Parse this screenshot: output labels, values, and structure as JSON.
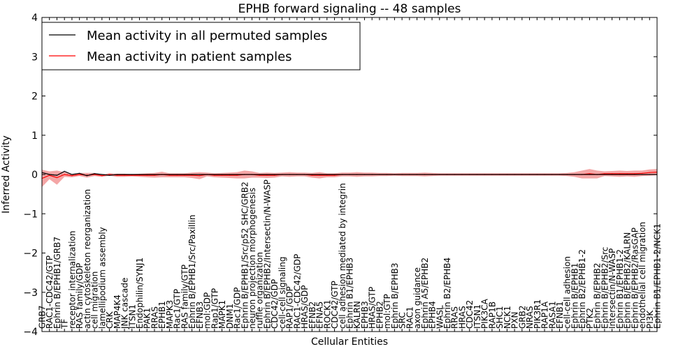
{
  "chart_data": {
    "type": "line",
    "title": "EPHB forward signaling -- 48 samples",
    "xlabel": "Cellular Entities",
    "ylabel": "Inferred Activity",
    "ylim": [
      -4,
      4
    ],
    "yticks": [
      "4",
      "3",
      "2",
      "1",
      "0",
      "−1",
      "−2",
      "−3",
      "−4"
    ],
    "ytick_values": [
      4,
      3,
      2,
      1,
      0,
      -1,
      -2,
      -3,
      -4
    ],
    "legend_position": "top-left",
    "categories": [
      "GRB7",
      "RAC1-CDC42/GTP",
      "Ephrin B/EPHB1/GRB7",
      "TF",
      "receptor internalization",
      "RAS family/GDP",
      "actin cytoskeleton reorganization",
      "cell migration",
      "lamellipodium assembly",
      "CRK",
      "MAP4K4",
      "JNK cascade",
      "ITSN1",
      "Endophilin/SYNJ1",
      "PAK1",
      "RRAS",
      "EPHB1",
      "MAPK3",
      "Rac1/GTP",
      "RAS family/GTP",
      "Ephrin B/EPHB1/Src/Paxillin",
      "EFNB3",
      "mol:GDP",
      "Rap1/GTP",
      "MAPK1",
      "DNM1",
      "Rac1/GDP",
      "Ephrin B/EPHB1/Src/p52 SHC/GRB2",
      "neuron projection morphogenesis",
      "ruffle organization",
      "Ephrin B/EPHB2/Intersectin/N-WASP",
      "CDC42/GDP",
      "cell-cell signaling",
      "RAP1/GDP",
      "RAC1-CDC42/GDP",
      "HRAS/GDP",
      "EFNB2",
      "EFNA5",
      "ROCK1",
      "CDC42/GTP",
      "cell adhesion mediated by integrin",
      "Ephrin B1/EPHB3",
      "KALRN",
      "EPHB3",
      "HRAS/GTP",
      "EPHB2",
      "mol:GTP",
      "Ephrin B/EPHB3",
      "SRC",
      "RAC1",
      "axon guidance",
      "Ephrin A5/EPHB2",
      "EPHB4",
      "WASL",
      "Ephrin B2/EPHB4",
      "RRAS",
      "HRAS",
      "CDC42",
      "ITSN1",
      "PIK3CA",
      "RAP1B",
      "SHC1",
      "NCK1",
      "PXN",
      "GRB2",
      "NRAS",
      "PIK3R1",
      "RAP1A",
      "RASA1",
      "EFNB1",
      "cell-cell adhesion",
      "Ephrin B/EPHB1",
      "Ephrin B2/EPHB1-2",
      "PTK2",
      "Ephrin B/EPHB2",
      "Ephrin B/EPHB2/Src",
      "Intersectin/N-WASP",
      "Ephrin B1/EPHB1-2",
      "Ephrin B/EPHB2/KALRN",
      "Ephrin B/EPHB2/RasGAP",
      "endothelial cell migration",
      "PI3K",
      "Ephrin B1/EPHB1-2/NCK1"
    ],
    "series": [
      {
        "name": "Mean activity in all permuted samples",
        "color": "#000000",
        "values": [
          0.05,
          0.0,
          -0.02,
          0.08,
          0.0,
          0.03,
          -0.03,
          0.02,
          0.0,
          -0.02,
          0.0,
          0.0,
          0.0,
          0.0,
          0.0,
          0.0,
          0.0,
          0.0,
          0.0,
          0.0,
          0.0,
          0.0,
          0.0,
          0.0,
          0.0,
          0.0,
          0.0,
          0.0,
          0.0,
          0.0,
          0.0,
          0.0,
          0.0,
          0.0,
          0.0,
          0.0,
          0.0,
          0.0,
          0.0,
          0.0,
          0.0,
          0.0,
          0.0,
          0.0,
          0.0,
          0.0,
          0.0,
          0.0,
          0.0,
          0.0,
          0.0,
          0.0,
          0.0,
          0.0,
          0.0,
          0.0,
          0.0,
          0.0,
          0.0,
          0.0,
          0.0,
          0.0,
          0.0,
          0.0,
          0.0,
          0.0,
          0.0,
          0.0,
          0.0,
          0.0,
          0.0,
          0.0,
          0.0,
          0.0,
          0.0,
          0.0,
          0.0,
          0.0,
          0.0,
          0.0,
          0.0,
          0.0,
          0.0
        ],
        "band": [
          0.03,
          0.03,
          0.03,
          0.03,
          0.02,
          0.02,
          0.02,
          0.02,
          0.02,
          0.02,
          0.02,
          0.02,
          0.02,
          0.02,
          0.02,
          0.02,
          0.02,
          0.02,
          0.02,
          0.02,
          0.02,
          0.02,
          0.02,
          0.02,
          0.02,
          0.02,
          0.02,
          0.02,
          0.02,
          0.02,
          0.02,
          0.02,
          0.02,
          0.02,
          0.02,
          0.02,
          0.02,
          0.02,
          0.02,
          0.02,
          0.02,
          0.02,
          0.02,
          0.02,
          0.02,
          0.02,
          0.02,
          0.02,
          0.02,
          0.02,
          0.02,
          0.02,
          0.02,
          0.02,
          0.02,
          0.02,
          0.02,
          0.02,
          0.02,
          0.02,
          0.02,
          0.02,
          0.02,
          0.02,
          0.02,
          0.02,
          0.02,
          0.02,
          0.02,
          0.02,
          0.02,
          0.02,
          0.02,
          0.02,
          0.02,
          0.02,
          0.02,
          0.02,
          0.02,
          0.02,
          0.02,
          0.02,
          0.02
        ]
      },
      {
        "name": "Mean activity in patient samples",
        "color": "#ff0000",
        "fill": "#f08080",
        "values": [
          -0.1,
          -0.02,
          -0.08,
          0.0,
          -0.03,
          0.0,
          -0.02,
          0.0,
          -0.03,
          0.0,
          -0.02,
          -0.02,
          -0.02,
          -0.02,
          -0.02,
          -0.02,
          0.0,
          -0.02,
          -0.02,
          -0.02,
          -0.02,
          -0.03,
          0.0,
          -0.02,
          -0.02,
          -0.02,
          -0.02,
          0.0,
          0.0,
          -0.02,
          -0.02,
          -0.02,
          0.0,
          0.0,
          0.0,
          0.0,
          -0.02,
          -0.02,
          -0.02,
          -0.02,
          0.0,
          0.0,
          0.0,
          0.0,
          0.0,
          0.0,
          0.0,
          0.0,
          0.0,
          0.0,
          0.0,
          0.0,
          0.0,
          0.0,
          0.0,
          0.0,
          0.0,
          0.0,
          0.0,
          0.0,
          0.0,
          0.0,
          0.0,
          0.0,
          0.0,
          0.0,
          0.0,
          0.0,
          0.0,
          0.0,
          0.0,
          0.0,
          0.0,
          0.02,
          0.0,
          0.02,
          0.02,
          0.02,
          0.02,
          0.02,
          0.03,
          0.05,
          0.06
        ],
        "band": [
          0.22,
          0.1,
          0.18,
          0.06,
          0.04,
          0.04,
          0.06,
          0.04,
          0.03,
          0.03,
          0.04,
          0.04,
          0.03,
          0.04,
          0.05,
          0.06,
          0.07,
          0.05,
          0.05,
          0.05,
          0.07,
          0.09,
          0.05,
          0.05,
          0.06,
          0.07,
          0.08,
          0.1,
          0.08,
          0.06,
          0.07,
          0.06,
          0.05,
          0.06,
          0.05,
          0.05,
          0.06,
          0.08,
          0.05,
          0.05,
          0.05,
          0.05,
          0.06,
          0.05,
          0.05,
          0.04,
          0.04,
          0.03,
          0.04,
          0.04,
          0.04,
          0.05,
          0.04,
          0.03,
          0.03,
          0.03,
          0.03,
          0.03,
          0.03,
          0.03,
          0.03,
          0.03,
          0.03,
          0.03,
          0.03,
          0.03,
          0.03,
          0.03,
          0.03,
          0.03,
          0.04,
          0.06,
          0.1,
          0.12,
          0.1,
          0.06,
          0.07,
          0.08,
          0.07,
          0.08,
          0.07,
          0.08,
          0.08
        ]
      }
    ]
  }
}
